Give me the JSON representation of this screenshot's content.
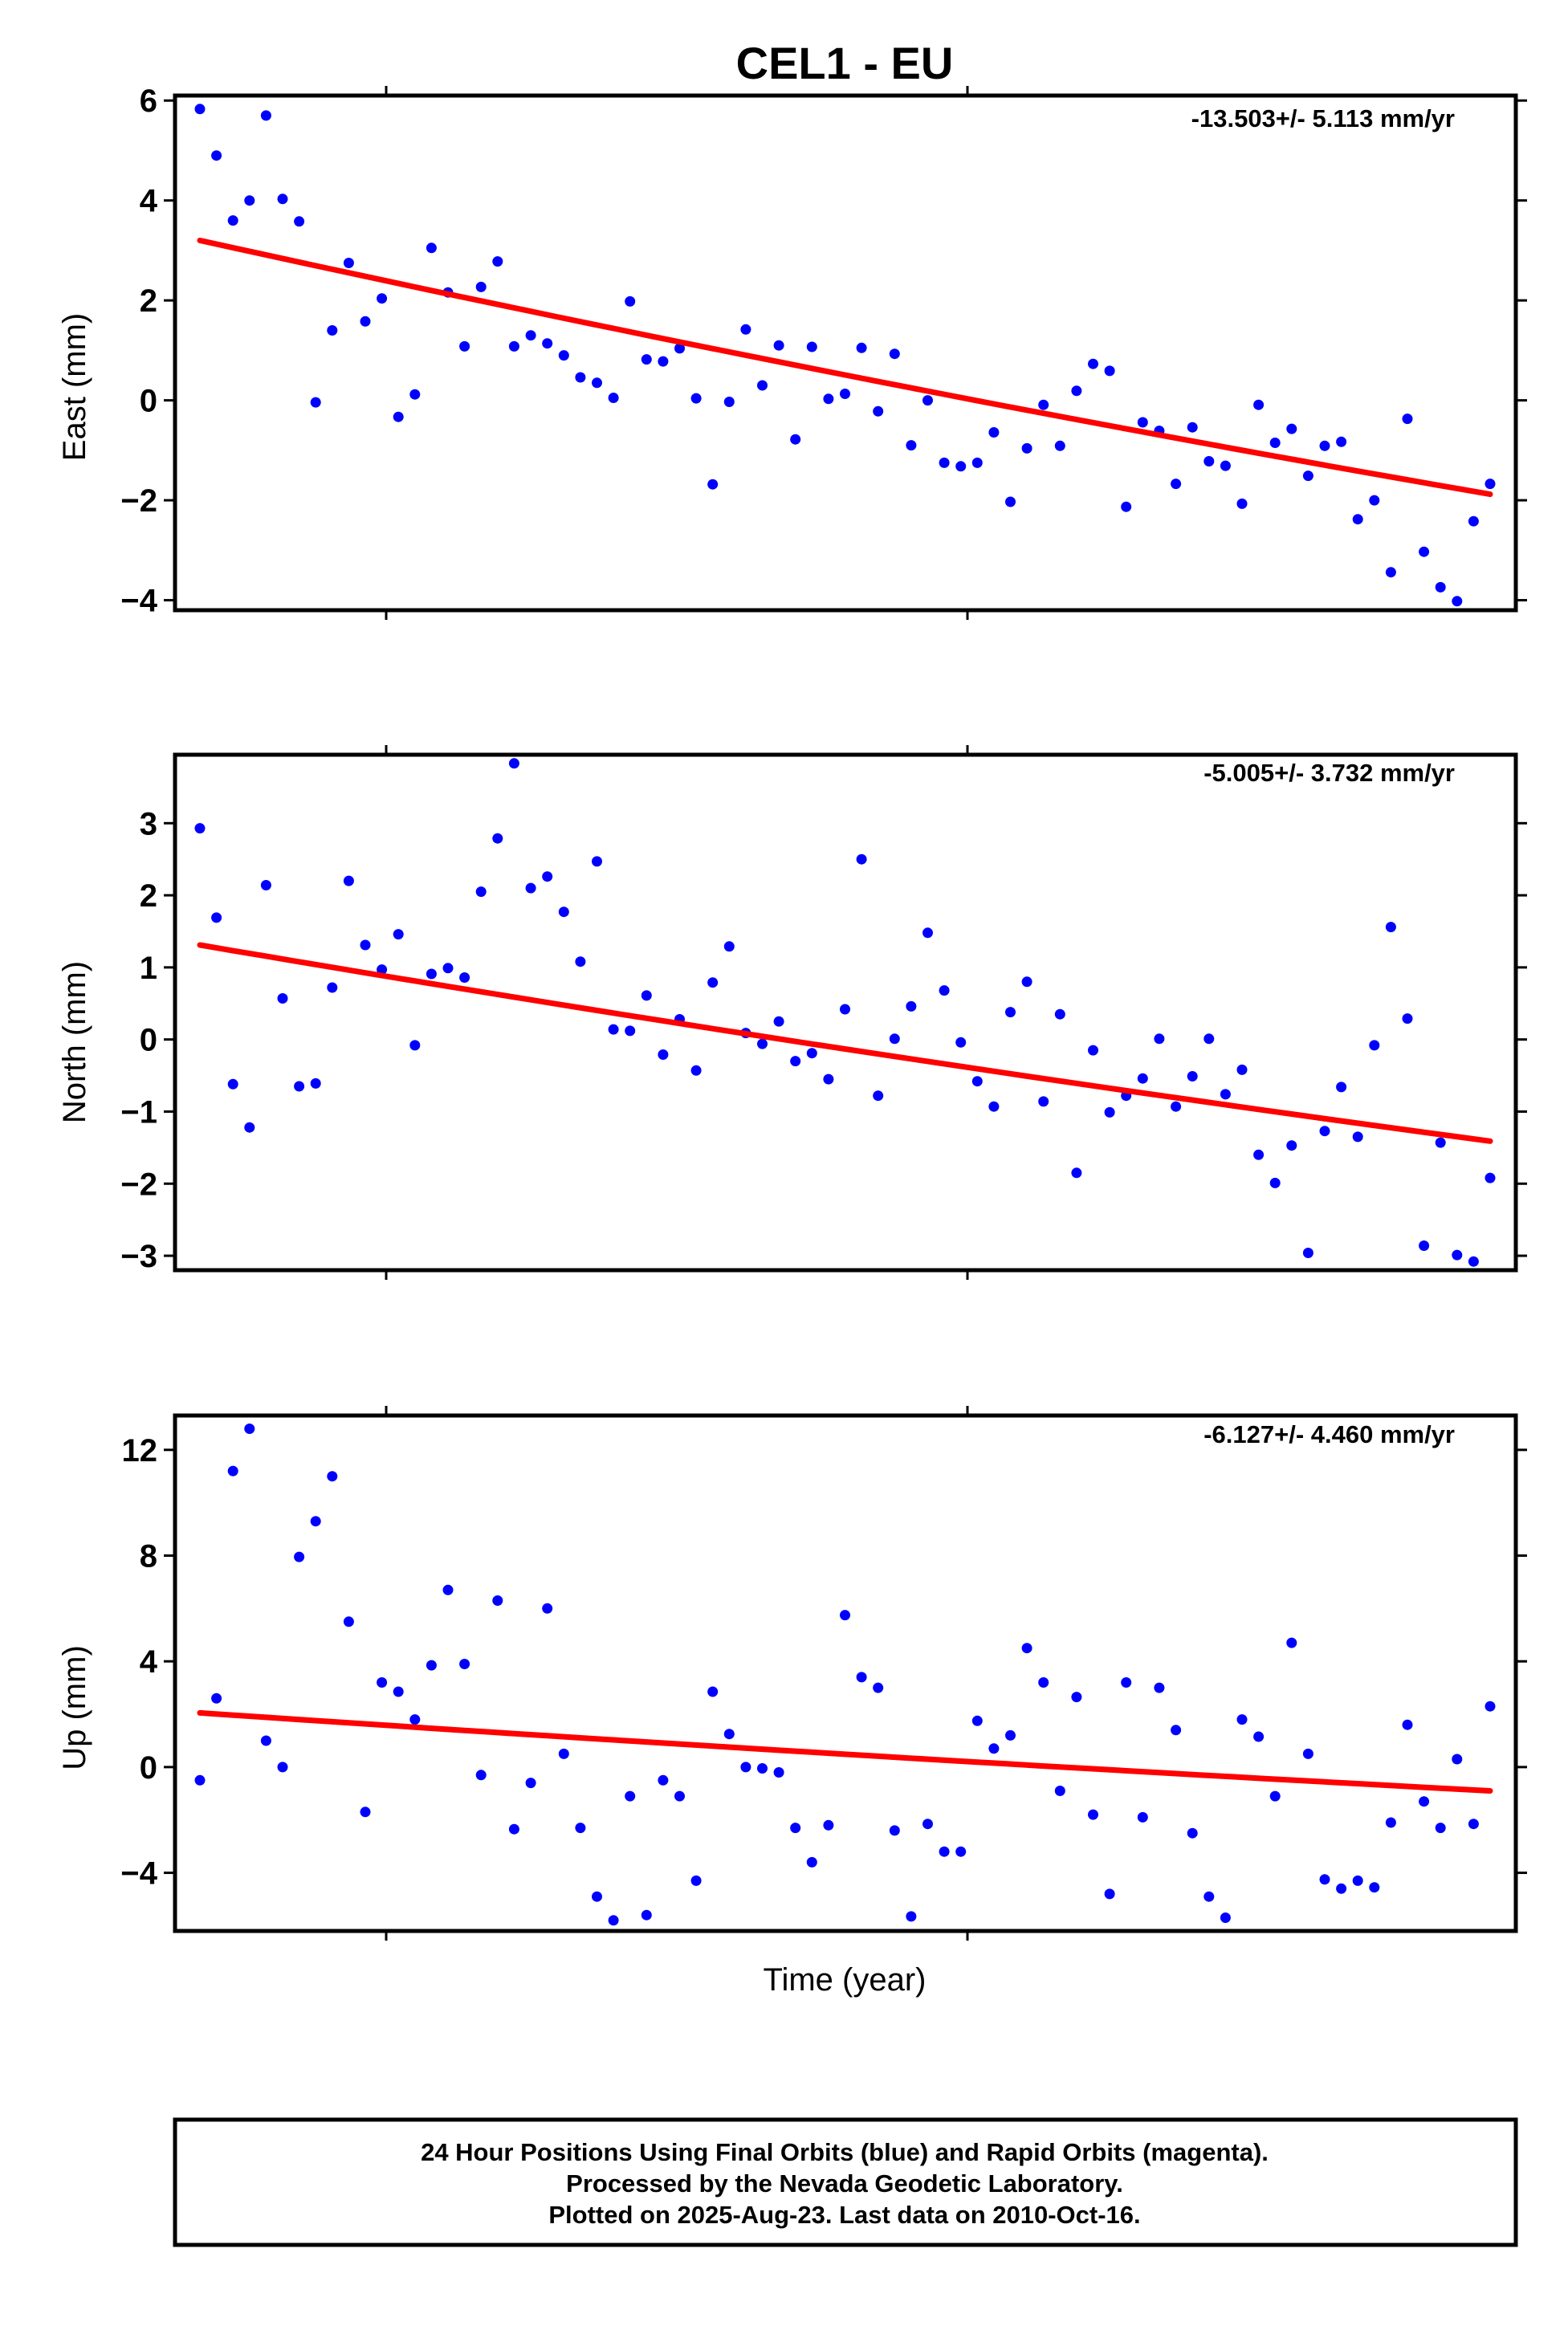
{
  "title": "CEL1 - EU",
  "xlabel": "Time (year)",
  "footer": {
    "line1": "24 Hour Positions Using Final Orbits (blue) and Rapid Orbits (magenta).",
    "line2": "Processed by the Nevada Geodetic Laboratory.",
    "line3": "Plotted on 2025-Aug-23. Last data on 2010-Oct-16."
  },
  "colors": {
    "points": "#0000ff",
    "fit": "#ff0000",
    "axes": "#000000",
    "background": "#ffffff"
  },
  "chart_data": [
    {
      "type": "scatter",
      "ylabel": "East (mm)",
      "rate_label": "-13.503+/- 5.113 mm/yr",
      "ylim": [
        -4.2,
        6.1
      ],
      "yticks": [
        -4,
        -2,
        0,
        2,
        4,
        6
      ],
      "ytick_labels": [
        "−4",
        "−2",
        "0",
        "2",
        "4",
        "6"
      ],
      "grid": false,
      "series": [
        {
          "values": [
            5.83,
            4.9,
            3.6,
            4.0,
            5.7,
            4.03,
            3.58,
            -0.04,
            1.4,
            2.75,
            1.58,
            2.04,
            -0.33,
            0.12,
            3.05,
            2.16,
            1.08,
            2.27,
            2.78,
            1.08,
            1.3,
            1.14,
            0.9,
            0.46,
            0.35,
            0.05,
            1.98,
            0.82,
            0.78,
            1.04,
            0.04,
            -1.68,
            -0.03,
            1.42,
            0.3,
            1.1,
            -0.78,
            1.07,
            0.03,
            0.13,
            1.05,
            -0.22,
            0.93,
            -0.9,
            0.0,
            -1.25,
            -1.32,
            -1.25,
            -0.64,
            -2.03,
            -0.96,
            -0.09,
            -0.91,
            0.19,
            0.73,
            0.59,
            -2.13,
            -0.44,
            -0.61,
            -1.67,
            -0.54,
            -1.22,
            -1.31,
            -2.07,
            -0.09,
            -0.85,
            -0.57,
            -1.51,
            -0.91,
            -0.83,
            -2.38,
            -2.0,
            -3.44,
            -0.37,
            -3.03,
            -3.74,
            -4.02,
            -2.42,
            -1.67
          ]
        },
        {
          "fit": [
            3.2,
            -1.88
          ]
        }
      ]
    },
    {
      "type": "scatter",
      "ylabel": "North (mm)",
      "rate_label": "-5.005+/- 3.732 mm/yr",
      "ylim": [
        -3.2,
        3.95
      ],
      "yticks": [
        -3,
        -2,
        -1,
        0,
        1,
        2,
        3
      ],
      "ytick_labels": [
        "−3",
        "−2",
        "−1",
        "0",
        "1",
        "2",
        "3"
      ],
      "grid": false,
      "series": [
        {
          "values": [
            2.93,
            1.69,
            -0.62,
            -1.22,
            2.14,
            0.57,
            -0.65,
            -0.61,
            0.72,
            2.2,
            1.31,
            0.97,
            1.46,
            -0.08,
            0.91,
            0.99,
            0.86,
            2.05,
            2.79,
            3.83,
            2.1,
            2.26,
            1.77,
            1.08,
            2.47,
            0.14,
            0.12,
            0.61,
            -0.21,
            0.28,
            -0.43,
            0.79,
            1.29,
            0.09,
            -0.06,
            0.25,
            -0.3,
            -0.19,
            -0.55,
            0.42,
            2.5,
            -0.78,
            0.01,
            0.46,
            1.48,
            0.68,
            -0.04,
            -0.58,
            -0.93,
            0.38,
            0.8,
            -0.86,
            0.35,
            -1.85,
            -0.15,
            -1.01,
            -0.78,
            -0.54,
            0.01,
            -0.93,
            -0.51,
            0.01,
            -0.76,
            -0.42,
            -1.6,
            -1.99,
            -1.47,
            -2.96,
            -1.27,
            -0.66,
            -1.35,
            -0.08,
            1.56,
            0.29,
            -2.86,
            -1.43,
            -2.99,
            -3.08,
            -1.92
          ]
        },
        {
          "fit": [
            1.31,
            -1.41
          ]
        }
      ]
    },
    {
      "type": "scatter",
      "ylabel": "Up (mm)",
      "rate_label": "-6.127+/- 4.460 mm/yr",
      "ylim": [
        -6.2,
        13.3
      ],
      "yticks": [
        -4,
        0,
        4,
        8,
        12
      ],
      "ytick_labels": [
        "−4",
        "0",
        "4",
        "8",
        "12"
      ],
      "grid": false,
      "series": [
        {
          "values": [
            -0.5,
            2.6,
            11.2,
            12.8,
            1.0,
            0.0,
            7.95,
            9.3,
            11.0,
            5.5,
            -1.7,
            3.2,
            2.85,
            1.8,
            3.85,
            6.7,
            3.9,
            -0.3,
            6.3,
            -2.35,
            -0.6,
            6.0,
            0.5,
            -2.3,
            -4.9,
            -5.8,
            -1.1,
            -5.6,
            -0.5,
            -1.1,
            -4.3,
            2.85,
            1.25,
            0.0,
            -0.05,
            -0.2,
            -2.3,
            -3.6,
            -2.2,
            5.75,
            3.4,
            3.0,
            -2.4,
            -5.65,
            -2.15,
            -3.2,
            -3.2,
            1.75,
            0.7,
            1.2,
            4.5,
            3.2,
            -0.9,
            2.65,
            -1.8,
            -4.8,
            3.2,
            -1.9,
            3.0,
            1.4,
            -2.5,
            -4.9,
            -5.7,
            1.8,
            1.15,
            -1.1,
            4.7,
            0.5,
            -4.25,
            -4.6,
            -4.3,
            -4.55,
            -2.1,
            1.6,
            -1.3,
            -2.3,
            0.3,
            -2.15,
            2.3
          ]
        },
        {
          "fit": [
            2.05,
            -0.9
          ]
        }
      ]
    }
  ]
}
